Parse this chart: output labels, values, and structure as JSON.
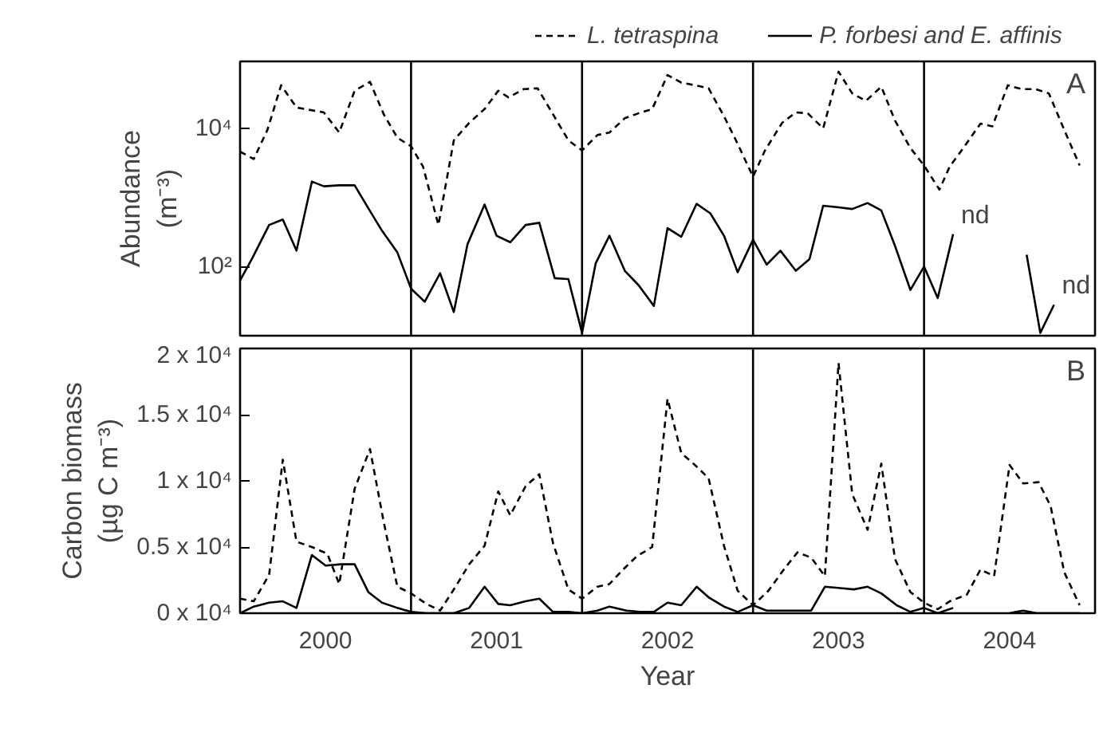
{
  "chart_data": [
    {
      "type": "line",
      "ylabel": "Abundance\n(m⁻³)",
      "log": "y",
      "xlim": [
        2000,
        2005
      ],
      "ylim": [
        10,
        93000
      ],
      "yticks": [
        {
          "value": 100,
          "label": "10²"
        },
        {
          "value": 10000,
          "label": "10⁴"
        }
      ],
      "tick_labels": "y",
      "legend": "top",
      "grid": false,
      "ref_lines": [
        {
          "axis": "x",
          "value": 2001,
          "color": "#000000"
        },
        {
          "axis": "x",
          "value": 2002,
          "color": "#000000"
        },
        {
          "axis": "x",
          "value": 2003,
          "color": "#000000"
        },
        {
          "axis": "x",
          "value": 2004,
          "color": "#000000"
        }
      ],
      "annotations": [
        "A",
        {
          "text": "nd",
          "x": 2004.17,
          "y": 295
        },
        {
          "text": "nd",
          "x": 2004.76,
          "y": 28
        }
      ],
      "series": [
        {
          "name": "L. tetraspina",
          "color": "#000000",
          "line_style": "dashed",
          "x": [
            2000.0,
            2000.08,
            2000.16,
            2000.24,
            2000.33,
            2000.49,
            2000.58,
            2000.67,
            2000.76,
            2000.84,
            2000.92,
            2001.0,
            2001.07,
            2001.16,
            2001.25,
            2001.34,
            2001.43,
            2001.51,
            2001.57,
            2001.66,
            2001.74,
            2001.83,
            2001.92,
            2002.0,
            2002.09,
            2002.16,
            2002.25,
            2002.33,
            2002.41,
            2002.5,
            2002.58,
            2002.66,
            2002.74,
            2002.83,
            2002.9,
            2003.0,
            2003.07,
            2003.17,
            2003.25,
            2003.32,
            2003.41,
            2003.5,
            2003.58,
            2003.66,
            2003.75,
            2003.83,
            2003.92,
            2004.0,
            2004.09,
            2004.15,
            2004.23,
            2004.33,
            2004.4,
            2004.49,
            2004.57,
            2004.65,
            2004.73,
            2004.82,
            2004.91
          ],
          "values": [
            4600,
            3600,
            9500,
            42000,
            20000,
            17000,
            8700,
            35000,
            47000,
            16000,
            7300,
            5500,
            2800,
            400,
            6700,
            12000,
            19000,
            35000,
            28000,
            37000,
            38000,
            16000,
            6700,
            4800,
            8000,
            8700,
            14000,
            16500,
            19000,
            59000,
            46000,
            42000,
            38000,
            15000,
            6700,
            2000,
            4800,
            12000,
            17000,
            16500,
            10000,
            66000,
            32000,
            25000,
            40000,
            13000,
            5200,
            2900,
            1300,
            2800,
            5200,
            11700,
            10700,
            42000,
            37000,
            37000,
            32000,
            9500,
            2900
          ]
        },
        {
          "name": "P. forbesi and E. affinis",
          "color": "#000000",
          "line_style": "solid",
          "x": [
            2000.0,
            2000.07,
            2000.17,
            2000.25,
            2000.33,
            2000.42,
            2000.49,
            2000.58,
            2000.67,
            2000.75,
            2000.83,
            2000.92,
            2001.0,
            2001.08,
            2001.17,
            2001.25,
            2001.33,
            2001.43,
            2001.5,
            2001.58,
            2001.67,
            2001.75,
            2001.84,
            2001.92,
            2002.0,
            2002.08,
            2002.16,
            2002.25,
            2002.33,
            2002.42,
            2002.5,
            2002.58,
            2002.67,
            2002.75,
            2002.83,
            2002.91,
            2003.0,
            2003.08,
            2003.16,
            2003.25,
            2003.33,
            2003.41,
            2003.5,
            2003.58,
            2003.67,
            2003.75,
            2003.83,
            2003.92,
            2004.0,
            2004.08,
            2004.17,
            2004.4,
            2004.6,
            2004.68,
            2004.76
          ],
          "values": [
            63,
            130,
            400,
            480,
            170,
            1700,
            1450,
            1500,
            1500,
            700,
            330,
            160,
            48,
            31,
            80,
            22,
            210,
            790,
            280,
            225,
            400,
            430,
            68,
            66,
            11,
            112,
            280,
            87,
            54,
            27,
            360,
            270,
            810,
            590,
            280,
            83,
            245,
            107,
            170,
            87,
            128,
            760,
            720,
            680,
            830,
            650,
            200,
            46,
            100,
            35,
            295,
            null,
            148,
            11,
            28
          ]
        }
      ]
    },
    {
      "type": "line",
      "ylabel": "Carbon biomass\n(µg C m⁻³)",
      "xlabel": "Year",
      "xlim": [
        2000,
        2005
      ],
      "ylim": [
        0,
        20000
      ],
      "xticks": [
        {
          "value": 2000.5,
          "label": "2000"
        },
        {
          "value": 2001.5,
          "label": "2001"
        },
        {
          "value": 2002.5,
          "label": "2002"
        },
        {
          "value": 2003.5,
          "label": "2003"
        },
        {
          "value": 2004.5,
          "label": "2004"
        }
      ],
      "yticks": [
        {
          "value": 0,
          "label": "0 x 10⁴"
        },
        {
          "value": 5000,
          "label": "0.5 x 10⁴"
        },
        {
          "value": 10000,
          "label": "1 x 10⁴"
        },
        {
          "value": 15000,
          "label": "1.5 x 10⁴"
        },
        {
          "value": 20000,
          "label": "2 x 10⁴"
        }
      ],
      "grid": false,
      "ref_lines": [
        {
          "axis": "x",
          "value": 2001,
          "color": "#000000"
        },
        {
          "axis": "x",
          "value": 2002,
          "color": "#000000"
        },
        {
          "axis": "x",
          "value": 2003,
          "color": "#000000"
        },
        {
          "axis": "x",
          "value": 2004,
          "color": "#000000"
        }
      ],
      "annotations": [
        "B"
      ],
      "series": [
        {
          "color": "#000000",
          "line_style": "dashed",
          "x": [
            2000.0,
            2000.08,
            2000.17,
            2000.25,
            2000.33,
            2000.42,
            2000.51,
            2000.58,
            2000.67,
            2000.76,
            2000.84,
            2000.92,
            2001.0,
            2001.09,
            2001.17,
            2001.26,
            2001.34,
            2001.43,
            2001.51,
            2001.58,
            2001.67,
            2001.75,
            2001.83,
            2001.92,
            2002.0,
            2002.09,
            2002.16,
            2002.24,
            2002.32,
            2002.41,
            2002.5,
            2002.58,
            2002.66,
            2002.74,
            2002.83,
            2002.91,
            2003.0,
            2003.09,
            2003.18,
            2003.26,
            2003.34,
            2003.42,
            2003.5,
            2003.58,
            2003.67,
            2003.75,
            2003.83,
            2003.92,
            2004.0,
            2004.08,
            2004.15,
            2004.25,
            2004.33,
            2004.41,
            2004.5,
            2004.58,
            2004.67,
            2004.74,
            2004.82,
            2004.91
          ],
          "values": [
            1100,
            900,
            2900,
            11600,
            5400,
            5000,
            4500,
            2200,
            9400,
            12400,
            6900,
            2000,
            1500,
            700,
            200,
            2000,
            3700,
            5100,
            9200,
            7400,
            9600,
            10500,
            5300,
            1800,
            1100,
            2000,
            2200,
            3300,
            4300,
            5000,
            16200,
            12100,
            11200,
            10200,
            5100,
            1700,
            600,
            1700,
            3300,
            4600,
            4200,
            2800,
            18900,
            9000,
            6300,
            11300,
            4100,
            1600,
            800,
            300,
            900,
            1400,
            3300,
            2800,
            11200,
            9800,
            9900,
            8100,
            3100,
            600
          ]
        },
        {
          "color": "#000000",
          "line_style": "solid",
          "x": [
            2000.0,
            2000.08,
            2000.17,
            2000.25,
            2000.33,
            2000.42,
            2000.5,
            2000.59,
            2000.67,
            2000.75,
            2000.83,
            2000.92,
            2001.0,
            2001.09,
            2001.17,
            2001.25,
            2001.34,
            2001.43,
            2001.51,
            2001.58,
            2001.67,
            2001.75,
            2001.83,
            2001.92,
            2002.0,
            2002.09,
            2002.16,
            2002.26,
            2002.34,
            2002.42,
            2002.5,
            2002.58,
            2002.67,
            2002.74,
            2002.83,
            2002.91,
            2003.0,
            2003.08,
            2003.17,
            2003.25,
            2003.34,
            2003.42,
            2003.51,
            2003.59,
            2003.67,
            2003.75,
            2003.84,
            2003.92,
            2004.0,
            2004.08,
            2004.17,
            2004.35,
            2004.5,
            2004.58,
            2004.66,
            2004.91
          ],
          "values": [
            0,
            500,
            800,
            900,
            400,
            4400,
            3600,
            3700,
            3700,
            1600,
            800,
            400,
            100,
            0,
            0,
            0,
            400,
            2000,
            700,
            600,
            900,
            1100,
            100,
            100,
            0,
            200,
            500,
            200,
            100,
            100,
            800,
            600,
            2000,
            1200,
            500,
            100,
            600,
            200,
            200,
            200,
            200,
            2000,
            1900,
            1800,
            2000,
            1500,
            600,
            100,
            400,
            0,
            400,
            null,
            0,
            200,
            0,
            0
          ]
        }
      ]
    }
  ]
}
